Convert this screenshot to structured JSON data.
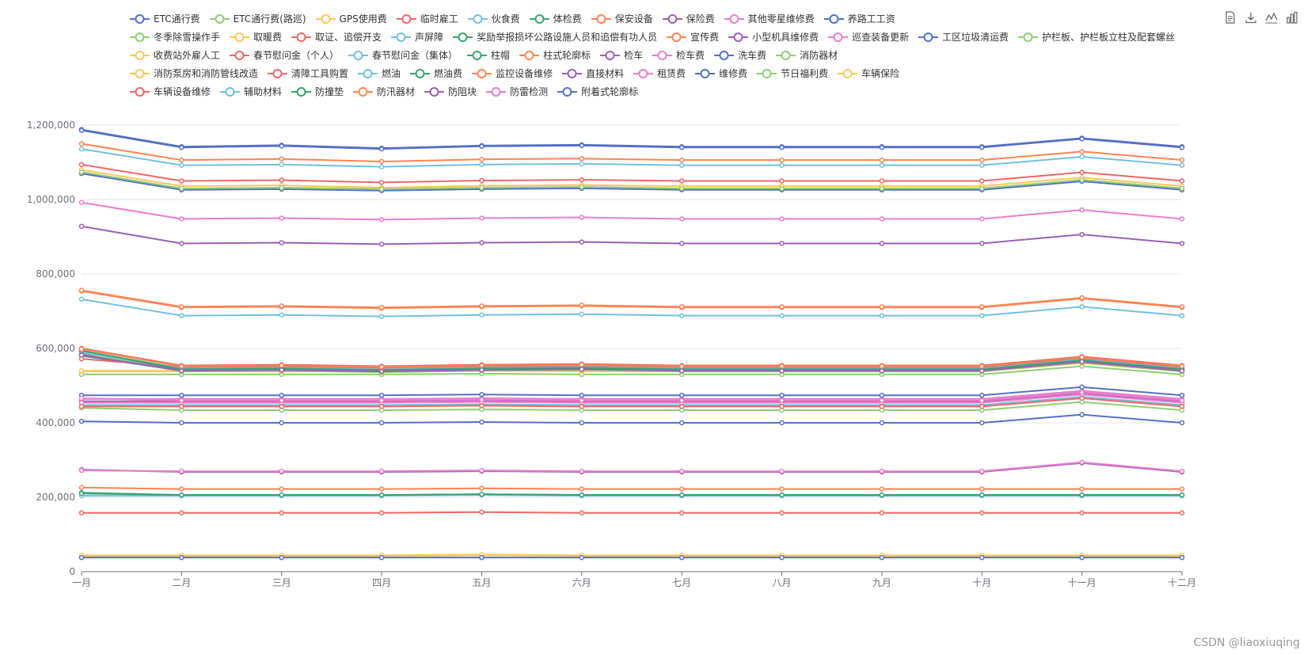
{
  "toolbox": [
    {
      "name": "data-view-icon"
    },
    {
      "name": "save-image-icon"
    },
    {
      "name": "line-chart-icon"
    },
    {
      "name": "bar-chart-icon"
    }
  ],
  "watermark": "CSDN @liaoxiuqing",
  "chart_data": {
    "type": "line",
    "categories": [
      "一月",
      "二月",
      "三月",
      "四月",
      "五月",
      "六月",
      "七月",
      "八月",
      "九月",
      "十月",
      "十一月",
      "十二月"
    ],
    "ylim": [
      0,
      1200000
    ],
    "yticks": [
      0,
      200000,
      400000,
      600000,
      800000,
      1000000,
      1200000
    ],
    "ytick_labels": [
      "0",
      "200,000",
      "400,000",
      "600,000",
      "800,000",
      "1,000,000",
      "1,200,000"
    ],
    "grid": true,
    "legend_position": "top",
    "series": [
      {
        "name": "ETC通行费",
        "color": "#5470c6",
        "values": [
          1188000,
          1142000,
          1146000,
          1138000,
          1145000,
          1147000,
          1142000,
          1142000,
          1142000,
          1142000,
          1165000,
          1142000
        ]
      },
      {
        "name": "ETC通行费(路巡)",
        "color": "#91cc75",
        "values": [
          530000,
          530000,
          530000,
          530000,
          532000,
          530000,
          530000,
          530000,
          530000,
          530000,
          552000,
          530000
        ]
      },
      {
        "name": "GPS使用费",
        "color": "#fac858",
        "values": [
          538000,
          538000,
          538000,
          538000,
          540000,
          538000,
          538000,
          538000,
          538000,
          538000,
          560000,
          538000
        ]
      },
      {
        "name": "临时雇工",
        "color": "#ee6666",
        "values": [
          158000,
          158000,
          158000,
          158000,
          160000,
          158000,
          158000,
          158000,
          158000,
          158000,
          158000,
          158000
        ]
      },
      {
        "name": "伙食费",
        "color": "#73c0de",
        "values": [
          1136000,
          1092000,
          1094000,
          1088000,
          1094000,
          1096000,
          1092000,
          1092000,
          1092000,
          1092000,
          1115000,
          1092000
        ]
      },
      {
        "name": "体检费",
        "color": "#3ba272",
        "values": [
          212000,
          206000,
          206000,
          206000,
          208000,
          206000,
          206000,
          206000,
          206000,
          206000,
          206000,
          206000
        ]
      },
      {
        "name": "保安设备",
        "color": "#fc8452",
        "values": [
          1150000,
          1106000,
          1109000,
          1102000,
          1108000,
          1110000,
          1106000,
          1106000,
          1106000,
          1106000,
          1129000,
          1106000
        ]
      },
      {
        "name": "保险费",
        "color": "#9a60b4",
        "values": [
          928000,
          882000,
          884000,
          880000,
          884000,
          886000,
          882000,
          882000,
          882000,
          882000,
          906000,
          882000
        ]
      },
      {
        "name": "其他零星维修费",
        "color": "#ea7ccc",
        "values": [
          992000,
          948000,
          950000,
          946000,
          950000,
          952000,
          948000,
          948000,
          948000,
          948000,
          972000,
          948000
        ]
      },
      {
        "name": "养路工工资",
        "color": "#5470c6",
        "values": [
          1186000,
          1140000,
          1144000,
          1136000,
          1143000,
          1145000,
          1140000,
          1140000,
          1140000,
          1140000,
          1163000,
          1140000
        ]
      },
      {
        "name": "冬季除雪操作手",
        "color": "#91cc75",
        "values": [
          440000,
          434000,
          434000,
          434000,
          436000,
          434000,
          434000,
          434000,
          434000,
          434000,
          456000,
          434000
        ]
      },
      {
        "name": "取暖费",
        "color": "#fac858",
        "values": [
          1080000,
          1036000,
          1038000,
          1032000,
          1037000,
          1039000,
          1036000,
          1036000,
          1036000,
          1036000,
          1059000,
          1036000
        ]
      },
      {
        "name": "取证、追偿开支",
        "color": "#ee6666",
        "values": [
          1094000,
          1050000,
          1052000,
          1046000,
          1051000,
          1053000,
          1050000,
          1050000,
          1050000,
          1050000,
          1073000,
          1050000
        ]
      },
      {
        "name": "声屏障",
        "color": "#73c0de",
        "values": [
          732000,
          688000,
          690000,
          686000,
          690000,
          692000,
          688000,
          688000,
          688000,
          688000,
          712000,
          688000
        ]
      },
      {
        "name": "奖励举报损坏公路设施人员和追偿有功人员",
        "color": "#3ba272",
        "values": [
          580000,
          540000,
          542000,
          538000,
          542000,
          544000,
          540000,
          540000,
          540000,
          540000,
          564000,
          540000
        ]
      },
      {
        "name": "宣传费",
        "color": "#fc8452",
        "values": [
          754000,
          710000,
          712000,
          708000,
          712000,
          714000,
          710000,
          710000,
          710000,
          710000,
          734000,
          710000
        ]
      },
      {
        "name": "小型机具维修费",
        "color": "#9a60b4",
        "values": [
          458000,
          458000,
          458000,
          458000,
          460000,
          458000,
          458000,
          458000,
          458000,
          458000,
          480000,
          458000
        ]
      },
      {
        "name": "巡查装备更新",
        "color": "#ea7ccc",
        "values": [
          464000,
          464000,
          464000,
          464000,
          466000,
          464000,
          464000,
          464000,
          464000,
          464000,
          486000,
          464000
        ]
      },
      {
        "name": "工区垃圾清运费",
        "color": "#5470c6",
        "values": [
          1070000,
          1026000,
          1028000,
          1024000,
          1028000,
          1030000,
          1026000,
          1026000,
          1026000,
          1026000,
          1049000,
          1026000
        ]
      },
      {
        "name": "护栏板、护栏板立柱及配套螺丝",
        "color": "#91cc75",
        "values": [
          1074000,
          1030000,
          1032000,
          1028000,
          1032000,
          1034000,
          1030000,
          1030000,
          1030000,
          1030000,
          1053000,
          1030000
        ]
      },
      {
        "name": "收费站外雇人工",
        "color": "#fac858",
        "values": [
          42000,
          42000,
          42000,
          42000,
          44000,
          42000,
          42000,
          42000,
          42000,
          42000,
          42000,
          42000
        ]
      },
      {
        "name": "春节慰问金（个人）",
        "color": "#ee6666",
        "values": [
          600000,
          554000,
          556000,
          552000,
          556000,
          558000,
          554000,
          554000,
          554000,
          554000,
          578000,
          554000
        ]
      },
      {
        "name": "春节慰问金（集体）",
        "color": "#73c0de",
        "values": [
          204000,
          204000,
          204000,
          204000,
          206000,
          204000,
          204000,
          204000,
          204000,
          204000,
          204000,
          204000
        ]
      },
      {
        "name": "柱帽",
        "color": "#3ba272",
        "values": [
          586000,
          542000,
          544000,
          540000,
          544000,
          546000,
          542000,
          542000,
          542000,
          542000,
          566000,
          542000
        ]
      },
      {
        "name": "柱式轮廓标",
        "color": "#fc8452",
        "values": [
          226000,
          222000,
          222000,
          222000,
          224000,
          222000,
          222000,
          222000,
          222000,
          222000,
          222000,
          222000
        ]
      },
      {
        "name": "检车",
        "color": "#9a60b4",
        "values": [
          274000,
          268000,
          268000,
          268000,
          270000,
          268000,
          268000,
          268000,
          268000,
          268000,
          292000,
          268000
        ]
      },
      {
        "name": "检车费",
        "color": "#ea7ccc",
        "values": [
          272000,
          270000,
          270000,
          270000,
          272000,
          270000,
          270000,
          270000,
          270000,
          270000,
          294000,
          270000
        ]
      },
      {
        "name": "洗车费",
        "color": "#5470c6",
        "values": [
          474000,
          474000,
          474000,
          474000,
          476000,
          474000,
          474000,
          474000,
          474000,
          474000,
          496000,
          474000
        ]
      },
      {
        "name": "消防器材",
        "color": "#91cc75",
        "values": [
          592000,
          548000,
          550000,
          546000,
          550000,
          552000,
          548000,
          548000,
          548000,
          548000,
          572000,
          548000
        ]
      },
      {
        "name": "消防泵房和消防管线改造",
        "color": "#fac858",
        "values": [
          540000,
          540000,
          540000,
          540000,
          542000,
          540000,
          540000,
          540000,
          540000,
          540000,
          562000,
          540000
        ]
      },
      {
        "name": "清障工具购置",
        "color": "#ee6666",
        "values": [
          572000,
          550000,
          552000,
          548000,
          552000,
          554000,
          550000,
          550000,
          550000,
          550000,
          574000,
          550000
        ]
      },
      {
        "name": "燃油",
        "color": "#73c0de",
        "values": [
          448000,
          448000,
          448000,
          448000,
          450000,
          448000,
          448000,
          448000,
          448000,
          448000,
          470000,
          448000
        ]
      },
      {
        "name": "燃油费",
        "color": "#3ba272",
        "values": [
          210000,
          206000,
          206000,
          206000,
          208000,
          206000,
          206000,
          206000,
          206000,
          206000,
          206000,
          206000
        ]
      },
      {
        "name": "监控设备维修",
        "color": "#fc8452",
        "values": [
          756000,
          712000,
          714000,
          710000,
          714000,
          716000,
          712000,
          712000,
          712000,
          712000,
          736000,
          712000
        ]
      },
      {
        "name": "直接材料",
        "color": "#9a60b4",
        "values": [
          584000,
          544000,
          546000,
          542000,
          546000,
          548000,
          544000,
          544000,
          544000,
          544000,
          568000,
          544000
        ]
      },
      {
        "name": "租赁费",
        "color": "#ea7ccc",
        "values": [
          454000,
          454000,
          454000,
          454000,
          456000,
          454000,
          454000,
          454000,
          454000,
          454000,
          476000,
          454000
        ]
      },
      {
        "name": "维修费",
        "color": "#5470c6",
        "values": [
          404000,
          400000,
          400000,
          400000,
          402000,
          400000,
          400000,
          400000,
          400000,
          400000,
          422000,
          400000
        ]
      },
      {
        "name": "节日福利费",
        "color": "#91cc75",
        "values": [
          588000,
          538000,
          540000,
          536000,
          540000,
          542000,
          538000,
          538000,
          538000,
          538000,
          562000,
          538000
        ]
      },
      {
        "name": "车辆保险",
        "color": "#fac858",
        "values": [
          44000,
          44000,
          44000,
          44000,
          46000,
          44000,
          44000,
          44000,
          44000,
          44000,
          44000,
          44000
        ]
      },
      {
        "name": "车辆设备维修",
        "color": "#ee6666",
        "values": [
          444000,
          444000,
          444000,
          444000,
          446000,
          444000,
          444000,
          444000,
          444000,
          444000,
          466000,
          444000
        ]
      },
      {
        "name": "辅助材料",
        "color": "#73c0de",
        "values": [
          590000,
          546000,
          548000,
          544000,
          548000,
          550000,
          546000,
          546000,
          546000,
          546000,
          570000,
          546000
        ]
      },
      {
        "name": "防撞垫",
        "color": "#3ba272",
        "values": [
          594000,
          544000,
          546000,
          542000,
          546000,
          548000,
          544000,
          544000,
          544000,
          544000,
          568000,
          544000
        ]
      },
      {
        "name": "防汛器材",
        "color": "#fc8452",
        "values": [
          598000,
          552000,
          554000,
          550000,
          554000,
          556000,
          552000,
          552000,
          552000,
          552000,
          576000,
          552000
        ]
      },
      {
        "name": "防阻块",
        "color": "#9a60b4",
        "values": [
          582000,
          540000,
          542000,
          538000,
          542000,
          544000,
          540000,
          540000,
          540000,
          540000,
          564000,
          540000
        ]
      },
      {
        "name": "防雷检测",
        "color": "#ea7ccc",
        "values": [
          466000,
          460000,
          460000,
          460000,
          462000,
          460000,
          460000,
          460000,
          460000,
          460000,
          482000,
          460000
        ]
      },
      {
        "name": "附着式轮廓标",
        "color": "#5470c6",
        "values": [
          38000,
          38000,
          38000,
          38000,
          38000,
          38000,
          38000,
          38000,
          38000,
          38000,
          38000,
          38000
        ]
      }
    ]
  }
}
